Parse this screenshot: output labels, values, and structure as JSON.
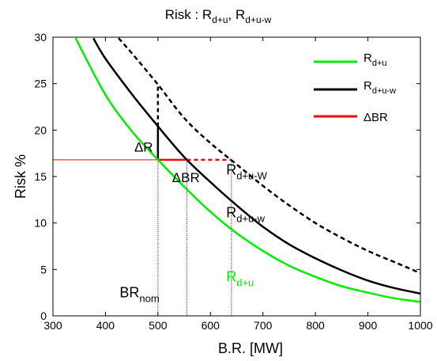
{
  "chart_data": {
    "type": "line",
    "title": {
      "main": "Risk : R",
      "sub1": "d+u",
      "sep": ",  R",
      "sub2": "d+u-w"
    },
    "xlabel": "B.R. [MW]",
    "ylabel": "Risk %",
    "xlim": [
      300,
      1000
    ],
    "ylim": [
      0,
      30
    ],
    "xticks": [
      300,
      400,
      500,
      600,
      700,
      800,
      900,
      1000
    ],
    "yticks": [
      0,
      5,
      10,
      15,
      20,
      25,
      30
    ],
    "grid": false,
    "legend_position": "top-right",
    "series": [
      {
        "key": "green",
        "color": "#00ee00",
        "style": "solid",
        "legend": {
          "base": "R",
          "sub": "d+u"
        },
        "label": {
          "base": "R",
          "sub": "d+u"
        },
        "x": [
          343,
          400,
          450,
          500,
          550,
          600,
          650,
          700,
          750,
          800,
          850,
          900,
          950,
          1000
        ],
        "y": [
          29.9,
          23.8,
          19.9,
          16.8,
          13.9,
          11.2,
          8.9,
          7.0,
          5.4,
          4.2,
          3.2,
          2.5,
          1.9,
          1.5
        ]
      },
      {
        "key": "black",
        "color": "#000000",
        "style": "solid",
        "legend": {
          "base": "R",
          "sub": "d+u-w"
        },
        "label": {
          "base": "R",
          "sub": "d+u-w"
        },
        "x": [
          377,
          400,
          450,
          500,
          550,
          600,
          650,
          700,
          750,
          800,
          850,
          900,
          950,
          1000
        ],
        "y": [
          29.9,
          27.7,
          23.9,
          20.4,
          17.1,
          14.4,
          11.9,
          9.6,
          7.7,
          6.2,
          4.9,
          3.8,
          3.0,
          2.4
        ]
      },
      {
        "key": "dashed",
        "color": "#000000",
        "style": "dashed",
        "label": {
          "base": "R",
          "sub": "d+u-W"
        },
        "x": [
          425,
          450,
          500,
          550,
          600,
          650,
          700,
          750,
          800,
          850,
          900,
          950,
          1000
        ],
        "y": [
          29.9,
          28.3,
          24.9,
          21.3,
          18.6,
          16.3,
          14.0,
          11.9,
          10.0,
          8.4,
          7.0,
          5.8,
          4.6
        ]
      }
    ],
    "delta_br_legend": {
      "color": "#ff0000",
      "label": "ΔBR"
    },
    "annotations": {
      "delta_r": "ΔR",
      "delta_br": "ΔBR",
      "br_nom": {
        "base": "BR",
        "sub": "nom"
      },
      "br_nom_value": 500,
      "br_mid_value": 555,
      "br_high_value": 640,
      "risk_level": 16.8,
      "delta_r_top": 20.4,
      "dashed_top": 24.9
    }
  }
}
